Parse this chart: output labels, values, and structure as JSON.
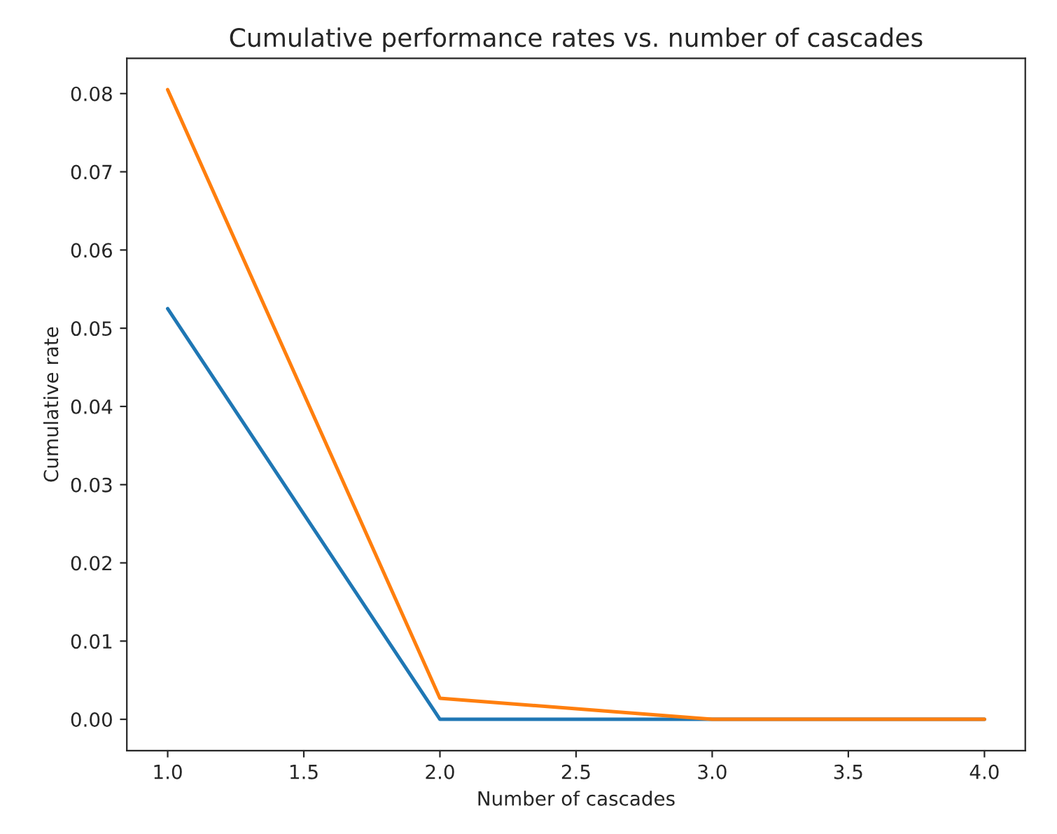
{
  "chart_data": {
    "type": "line",
    "title": "Cumulative performance rates vs. number of cascades",
    "xlabel": "Number of cascades",
    "ylabel": "Cumulative rate",
    "x": [
      1.0,
      2.0,
      3.0,
      4.0
    ],
    "series": [
      {
        "color": "#1f77b4",
        "values": [
          0.0525,
          0.0,
          0.0,
          0.0
        ]
      },
      {
        "color": "#ff7f0e",
        "values": [
          0.0805,
          0.0027,
          0.0,
          0.0
        ]
      }
    ],
    "xlim": [
      0.85,
      4.15
    ],
    "ylim": [
      -0.004,
      0.0845
    ],
    "xticks": [
      {
        "value": 1.0,
        "label": "1.0"
      },
      {
        "value": 1.5,
        "label": "1.5"
      },
      {
        "value": 2.0,
        "label": "2.0"
      },
      {
        "value": 2.5,
        "label": "2.5"
      },
      {
        "value": 3.0,
        "label": "3.0"
      },
      {
        "value": 3.5,
        "label": "3.5"
      },
      {
        "value": 4.0,
        "label": "4.0"
      }
    ],
    "yticks": [
      {
        "value": 0,
        "label": "0.00"
      },
      {
        "value": 0.01,
        "label": "0.01"
      },
      {
        "value": 0.02,
        "label": "0.02"
      },
      {
        "value": 0.03,
        "label": "0.03"
      },
      {
        "value": 0.04,
        "label": "0.04"
      },
      {
        "value": 0.05,
        "label": "0.05"
      },
      {
        "value": 0.06,
        "label": "0.06"
      },
      {
        "value": 0.07,
        "label": "0.07"
      },
      {
        "value": 0.08,
        "label": "0.08"
      }
    ],
    "grid": false,
    "legend": false
  }
}
